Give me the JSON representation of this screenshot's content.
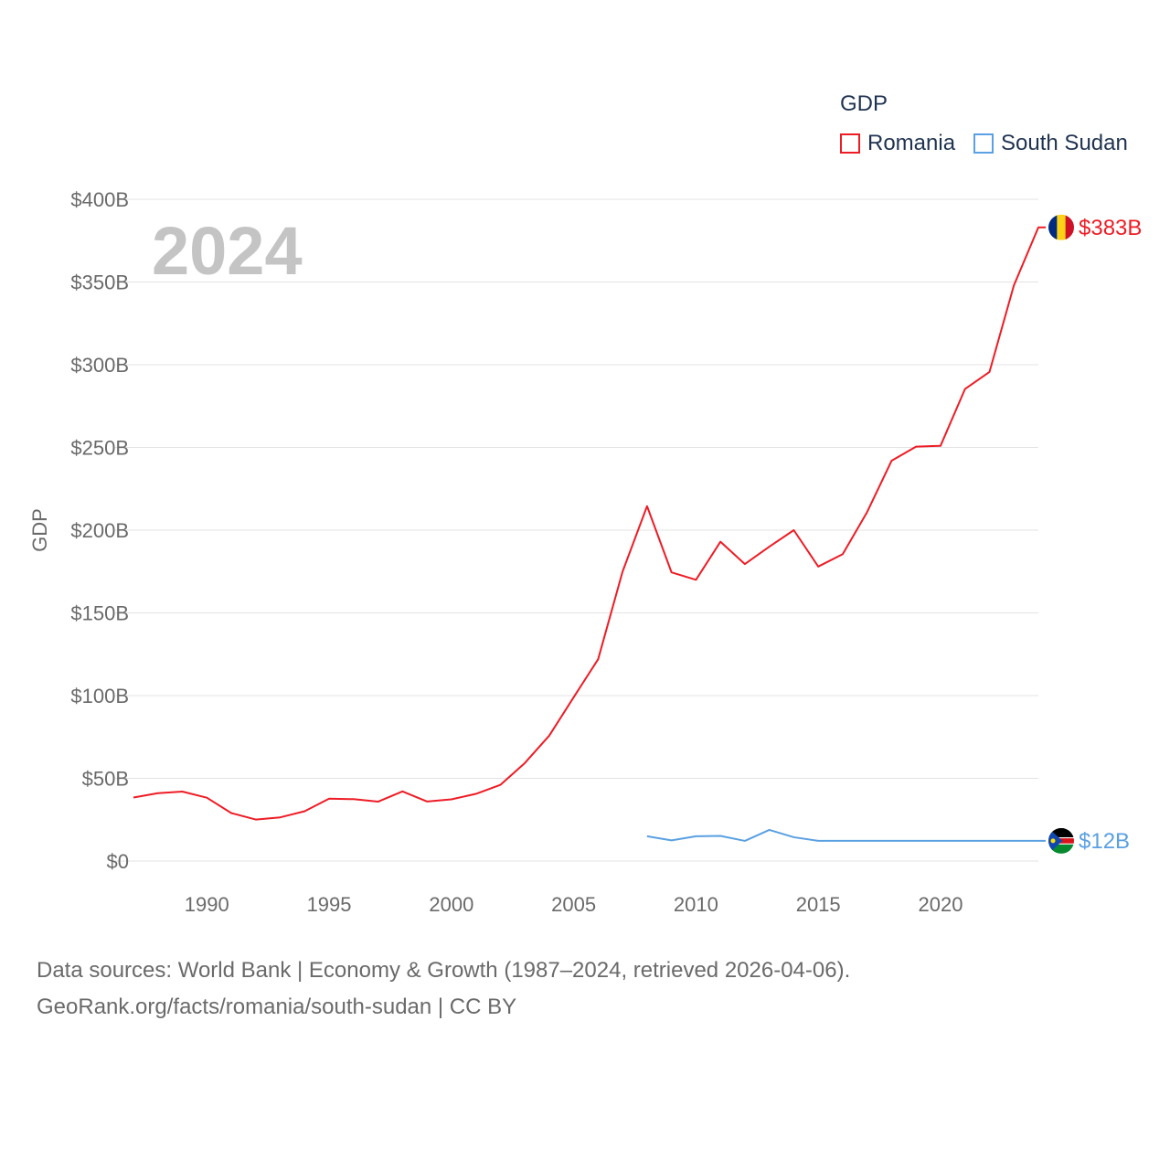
{
  "legend": {
    "title": "GDP",
    "items": [
      {
        "label": "Romania",
        "color": "#ee1c25"
      },
      {
        "label": "South Sudan",
        "color": "#5aa0e2"
      }
    ]
  },
  "footer": {
    "line1": "Data sources: World Bank | Economy & Growth (1987–2024, retrieved 2026-04-06).",
    "line2": "GeoRank.org/facts/romania/south-sudan | CC BY"
  },
  "chart_data": {
    "type": "line",
    "title": "GDP",
    "year_label": "2024",
    "xlabel": "",
    "ylabel": "GDP",
    "xlim": [
      1987,
      2024
    ],
    "ylim": [
      0,
      400
    ],
    "x_ticks": [
      1990,
      1995,
      2000,
      2005,
      2010,
      2015,
      2020
    ],
    "x_tick_labels": [
      "1990",
      "1995",
      "2000",
      "2005",
      "2010",
      "2015",
      "2020"
    ],
    "y_ticks": [
      0,
      50,
      100,
      150,
      200,
      250,
      300,
      350,
      400
    ],
    "y_tick_labels": [
      "$0",
      "$50B",
      "$100B",
      "$150B",
      "$200B",
      "$250B",
      "$300B",
      "$350B",
      "$400B"
    ],
    "unit": "billion USD",
    "series": [
      {
        "name": "Romania",
        "color": "#ee1c25",
        "end_label": "$383B",
        "flag": [
          "#002b7f",
          "#fcd116",
          "#ce1126"
        ],
        "x": [
          1987,
          1988,
          1989,
          1990,
          1991,
          1992,
          1993,
          1994,
          1995,
          1996,
          1997,
          1998,
          1999,
          2000,
          2001,
          2002,
          2003,
          2004,
          2005,
          2006,
          2007,
          2008,
          2009,
          2010,
          2011,
          2012,
          2013,
          2014,
          2015,
          2016,
          2017,
          2018,
          2019,
          2020,
          2021,
          2022,
          2023,
          2024
        ],
        "values": [
          38.4,
          41,
          42,
          38.3,
          29,
          25.1,
          26.4,
          30.1,
          37.7,
          37.4,
          35.9,
          42.1,
          36,
          37.3,
          40.6,
          46,
          59.2,
          75.8,
          99,
          122,
          175,
          214.5,
          174.5,
          170,
          193,
          179.5,
          190,
          200,
          178,
          185.5,
          211,
          242,
          250.5,
          251,
          285.3,
          295.6,
          348,
          383
        ]
      },
      {
        "name": "South Sudan",
        "color": "#5aa0e2",
        "end_label": "$12B",
        "flag": [
          "#000000",
          "#ffffff",
          "#da121a",
          "#078930",
          "#0f47af",
          "#fcdd09"
        ],
        "x": [
          2008,
          2009,
          2010,
          2011,
          2012,
          2013,
          2014,
          2015,
          2016,
          2017,
          2018,
          2019,
          2020,
          2021,
          2022,
          2023,
          2024
        ],
        "values": [
          15,
          12.5,
          15,
          15.2,
          12.2,
          18.8,
          14.4,
          12.2,
          12.2,
          12.2,
          12.2,
          12.2,
          12.2,
          12.2,
          12.2,
          12.2,
          12.2
        ]
      }
    ]
  }
}
